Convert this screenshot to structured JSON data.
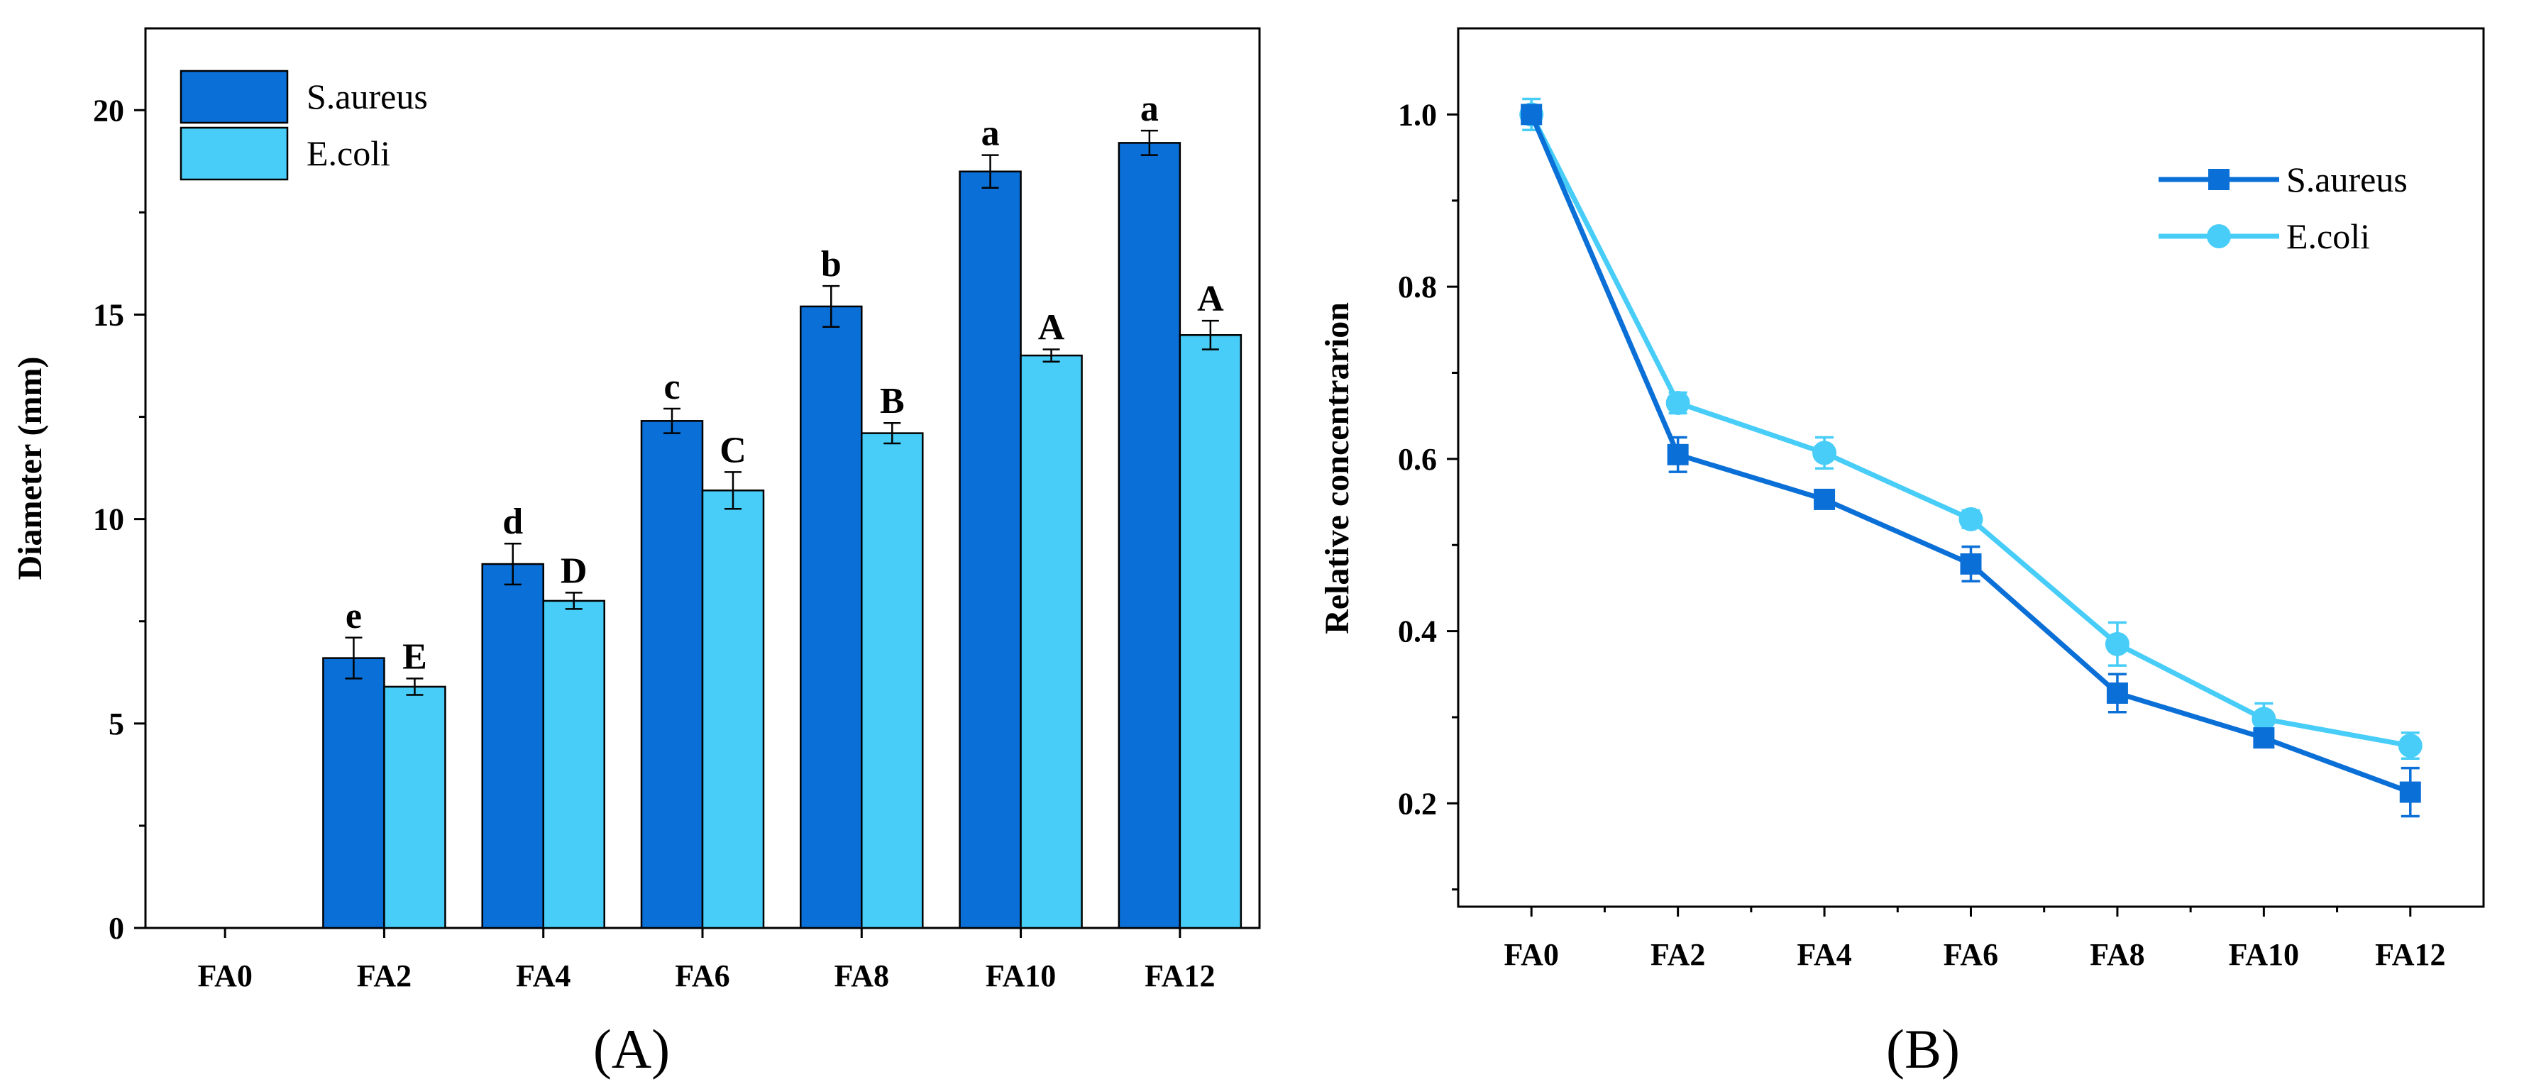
{
  "colors": {
    "s_aureus": "#0a6fd6",
    "e_coli": "#47cdf7",
    "axis": "#000000"
  },
  "chart_data": [
    {
      "type": "bar",
      "panel_label": "(A)",
      "ylabel": "Diameter (mm)",
      "xlabel": "",
      "categories": [
        "FA0",
        "FA2",
        "FA4",
        "FA6",
        "FA8",
        "FA10",
        "FA12"
      ],
      "ylim": [
        0,
        22
      ],
      "yticks": [
        0,
        5,
        10,
        15,
        20
      ],
      "legend_position": "top-left",
      "series": [
        {
          "name": "S.aureus",
          "color_key": "s_aureus",
          "values": [
            null,
            6.6,
            8.9,
            12.4,
            15.2,
            18.5,
            19.2
          ],
          "errors": [
            null,
            0.5,
            0.5,
            0.3,
            0.5,
            0.4,
            0.3
          ],
          "labels": [
            "",
            "e",
            "d",
            "c",
            "b",
            "a",
            "a"
          ]
        },
        {
          "name": "E.coli",
          "color_key": "e_coli",
          "values": [
            null,
            5.9,
            8.0,
            10.7,
            12.1,
            14.0,
            14.5
          ],
          "errors": [
            null,
            0.2,
            0.2,
            0.45,
            0.25,
            0.15,
            0.35
          ],
          "labels": [
            "",
            "E",
            "D",
            "C",
            "B",
            "A",
            "A"
          ]
        }
      ]
    },
    {
      "type": "line",
      "panel_label": "(B)",
      "ylabel": "Relative concentrarion",
      "xlabel": "",
      "categories": [
        "FA0",
        "FA2",
        "FA4",
        "FA6",
        "FA8",
        "FA10",
        "FA12"
      ],
      "ylim": [
        0.08,
        1.1
      ],
      "yticks": [
        "0.2",
        "0.4",
        "0.6",
        "0.8",
        "1.0"
      ],
      "legend_position": "top-right",
      "series": [
        {
          "name": "S.aureus",
          "color_key": "s_aureus",
          "marker": "square",
          "values": [
            1.0,
            0.605,
            0.553,
            0.478,
            0.328,
            0.276,
            0.213
          ],
          "errors": [
            0.01,
            0.02,
            0.008,
            0.02,
            0.022,
            0.01,
            0.028
          ]
        },
        {
          "name": "E.coli",
          "color_key": "e_coli",
          "marker": "circle",
          "values": [
            1.0,
            0.665,
            0.607,
            0.53,
            0.385,
            0.298,
            0.267
          ],
          "errors": [
            0.018,
            0.012,
            0.018,
            0.01,
            0.025,
            0.018,
            0.015
          ]
        }
      ]
    }
  ]
}
